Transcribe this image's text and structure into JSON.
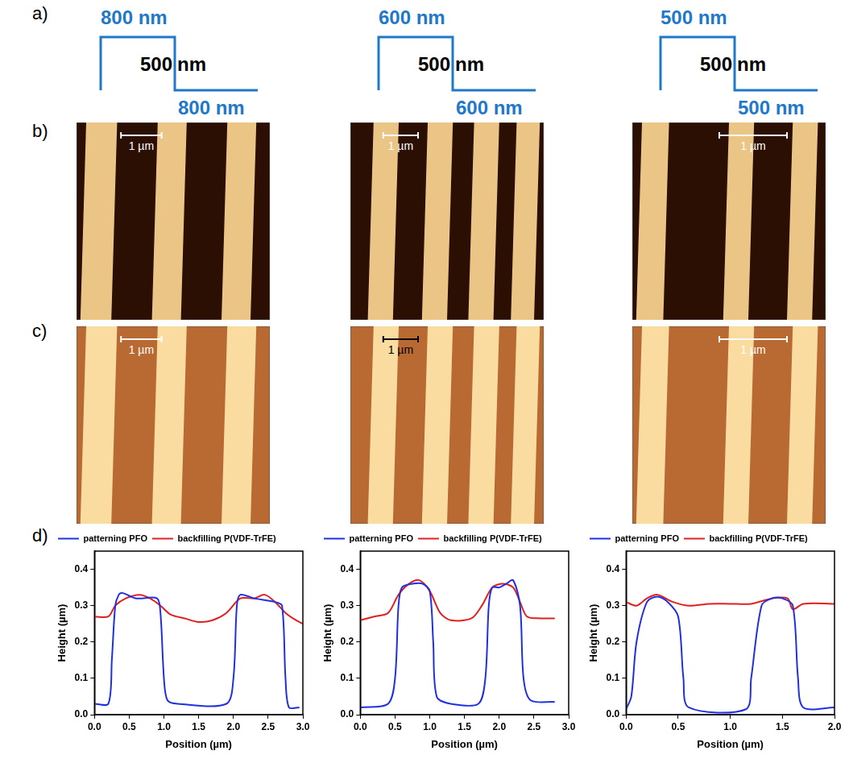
{
  "panel_labels": [
    "a)",
    "b)",
    "c)",
    "d)"
  ],
  "schematics": [
    {
      "top_width": "800 nm",
      "step_height": "500 nm",
      "bottom_width": "800 nm"
    },
    {
      "top_width": "600 nm",
      "step_height": "500 nm",
      "bottom_width": "600 nm"
    },
    {
      "top_width": "500 nm",
      "step_height": "500 nm",
      "bottom_width": "500 nm"
    }
  ],
  "afm_images": [
    {
      "scale_bars": [
        "1 µm",
        "1 µm",
        "1 µm"
      ]
    },
    {
      "scale_bars": [
        "1 µm",
        "1 µm",
        "1 µm"
      ]
    }
  ],
  "chart_data": [
    {
      "type": "line",
      "xlabel": "Position (µm)",
      "ylabel": "Height (µm)",
      "xlim": [
        0,
        3.0
      ],
      "xticks": [
        {
          "value": 0,
          "label": "0.0"
        },
        0.5,
        {
          "value": 1,
          "label": "1.0"
        },
        1.5,
        {
          "value": 2,
          "label": "2.0"
        },
        2.5,
        {
          "value": 3,
          "label": "3.0"
        }
      ],
      "ylim": [
        0,
        0.45
      ],
      "yticks": [
        {
          "value": 0,
          "label": "0.0"
        },
        0.1,
        0.2,
        0.3,
        0.4
      ],
      "grid": false,
      "legend": "top",
      "series": [
        {
          "name": "patterning PFO",
          "color": "#2030e0",
          "line_style": "solid",
          "x": [
            0.0,
            0.2,
            0.25,
            0.3,
            0.35,
            0.4,
            0.6,
            0.9,
            0.95,
            1.0,
            1.05,
            1.2,
            1.9,
            2.0,
            2.05,
            2.1,
            2.3,
            2.6,
            2.7,
            2.75,
            2.8,
            2.95
          ],
          "values": [
            0.03,
            0.03,
            0.15,
            0.3,
            0.33,
            0.335,
            0.32,
            0.32,
            0.28,
            0.1,
            0.04,
            0.03,
            0.03,
            0.1,
            0.3,
            0.33,
            0.32,
            0.31,
            0.3,
            0.1,
            0.02,
            0.02
          ]
        },
        {
          "name": "backfilling P(VDF-TrFE)",
          "color": "#e02020",
          "line_style": "solid",
          "x": [
            0.0,
            0.2,
            0.3,
            0.45,
            0.65,
            0.8,
            0.95,
            1.1,
            1.3,
            1.5,
            1.7,
            1.9,
            2.1,
            2.3,
            2.45,
            2.6,
            2.75,
            2.9,
            3.0
          ],
          "values": [
            0.27,
            0.27,
            0.3,
            0.32,
            0.33,
            0.32,
            0.3,
            0.275,
            0.265,
            0.255,
            0.26,
            0.28,
            0.32,
            0.32,
            0.33,
            0.31,
            0.28,
            0.26,
            0.25
          ]
        }
      ]
    },
    {
      "type": "line",
      "xlabel": "Position (µm)",
      "ylabel": "Height (µm)",
      "xlim": [
        0,
        3.0
      ],
      "xticks": [
        {
          "value": 0,
          "label": "0.0"
        },
        0.5,
        {
          "value": 1,
          "label": "1.0"
        },
        1.5,
        {
          "value": 2,
          "label": "2.0"
        },
        2.5,
        {
          "value": 3,
          "label": "3.0"
        }
      ],
      "ylim": [
        0,
        0.45
      ],
      "yticks": [
        {
          "value": 0,
          "label": "0.0"
        },
        0.1,
        0.2,
        0.3,
        0.4
      ],
      "grid": false,
      "legend": "top",
      "series": [
        {
          "name": "patterning PFO",
          "color": "#2030e0",
          "line_style": "solid",
          "x": [
            0.0,
            0.4,
            0.5,
            0.55,
            0.6,
            0.75,
            0.9,
            1.0,
            1.05,
            1.1,
            1.3,
            1.7,
            1.8,
            1.85,
            1.9,
            2.0,
            2.1,
            2.2,
            2.3,
            2.35,
            2.45,
            2.8
          ],
          "values": [
            0.02,
            0.03,
            0.1,
            0.3,
            0.35,
            0.36,
            0.36,
            0.34,
            0.2,
            0.05,
            0.03,
            0.03,
            0.1,
            0.3,
            0.35,
            0.35,
            0.36,
            0.37,
            0.3,
            0.1,
            0.04,
            0.035
          ]
        },
        {
          "name": "backfilling P(VDF-TrFE)",
          "color": "#e02020",
          "line_style": "solid",
          "x": [
            0.0,
            0.2,
            0.4,
            0.55,
            0.7,
            0.85,
            1.0,
            1.15,
            1.3,
            1.6,
            1.75,
            1.9,
            2.05,
            2.2,
            2.3,
            2.4,
            2.6,
            2.8
          ],
          "values": [
            0.26,
            0.27,
            0.28,
            0.33,
            0.36,
            0.37,
            0.34,
            0.28,
            0.26,
            0.265,
            0.3,
            0.35,
            0.36,
            0.35,
            0.31,
            0.27,
            0.265,
            0.265
          ]
        }
      ]
    },
    {
      "type": "line",
      "xlabel": "Position (µm)",
      "ylabel": "Height (µm)",
      "xlim": [
        0,
        2.0
      ],
      "xticks": [
        {
          "value": 0,
          "label": "0.0"
        },
        0.5,
        {
          "value": 1,
          "label": "1.0"
        },
        1.5,
        {
          "value": 2,
          "label": "2.0"
        }
      ],
      "ylim": [
        0,
        0.45
      ],
      "yticks": [
        {
          "value": 0,
          "label": "0.0"
        },
        0.1,
        0.2,
        0.3,
        0.4
      ],
      "grid": false,
      "legend": "top",
      "series": [
        {
          "name": "patterning PFO",
          "color": "#2030e0",
          "line_style": "solid",
          "x": [
            0.0,
            0.05,
            0.1,
            0.2,
            0.3,
            0.4,
            0.5,
            0.55,
            0.6,
            1.15,
            1.2,
            1.3,
            1.4,
            1.5,
            1.6,
            1.65,
            1.7,
            2.0
          ],
          "values": [
            0.015,
            0.05,
            0.2,
            0.31,
            0.325,
            0.31,
            0.27,
            0.1,
            0.02,
            0.015,
            0.1,
            0.3,
            0.32,
            0.32,
            0.3,
            0.1,
            0.02,
            0.02
          ]
        },
        {
          "name": "backfilling P(VDF-TrFE)",
          "color": "#e02020",
          "line_style": "solid",
          "x": [
            0.0,
            0.1,
            0.2,
            0.3,
            0.45,
            0.6,
            0.8,
            1.0,
            1.2,
            1.4,
            1.55,
            1.6,
            1.7,
            2.0
          ],
          "values": [
            0.31,
            0.3,
            0.32,
            0.33,
            0.31,
            0.3,
            0.305,
            0.305,
            0.305,
            0.32,
            0.32,
            0.29,
            0.305,
            0.305
          ]
        }
      ]
    }
  ]
}
